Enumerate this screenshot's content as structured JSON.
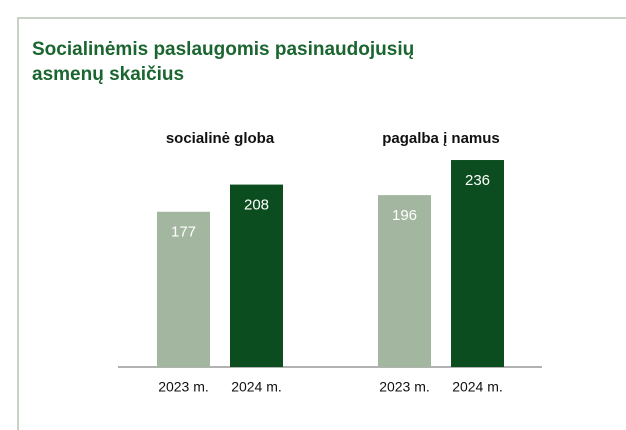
{
  "title_lines": [
    "Socialinėmis paslaugomis pasinaudojusių",
    "asmenų skaičius"
  ],
  "chart_data": [
    {
      "type": "bar",
      "title": "socialinė globa",
      "categories": [
        "2023 m.",
        "2024 m."
      ],
      "values": [
        177,
        208
      ],
      "colors": [
        "#a3b7a0",
        "#0b4d1f"
      ]
    },
    {
      "type": "bar",
      "title": "pagalba į namus",
      "categories": [
        "2023 m.",
        "2024 m."
      ],
      "values": [
        196,
        236
      ],
      "colors": [
        "#a3b7a0",
        "#0b4d1f"
      ]
    }
  ]
}
